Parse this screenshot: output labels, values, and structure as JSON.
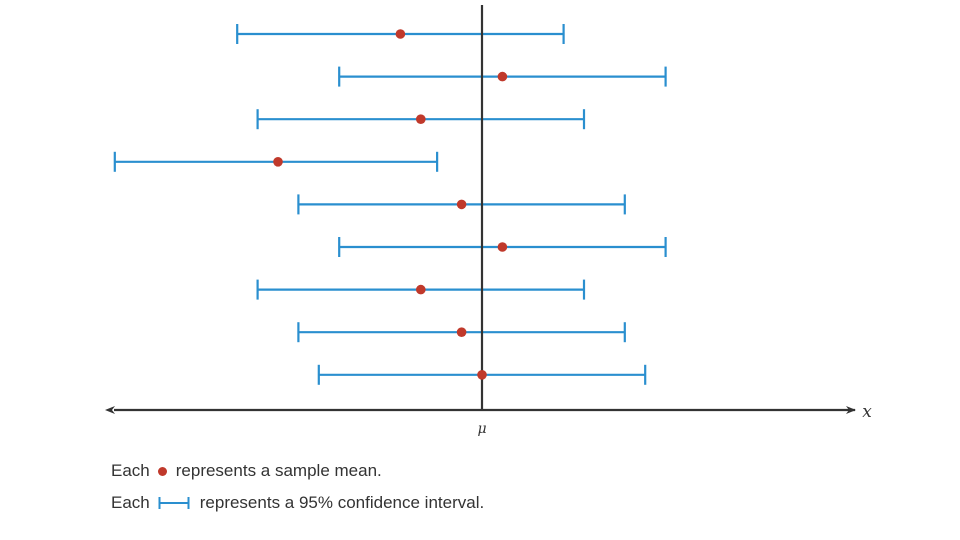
{
  "diagram": {
    "axis": {
      "mean_symbol": "μ",
      "variable_label": "x"
    },
    "intervals": [
      {
        "lower": -6.0,
        "mean": -2.0,
        "upper": 2.0
      },
      {
        "lower": -3.5,
        "mean": 0.5,
        "upper": 4.5
      },
      {
        "lower": -5.5,
        "mean": -1.5,
        "upper": 2.5
      },
      {
        "lower": -9.0,
        "mean": -5.0,
        "upper": -1.1
      },
      {
        "lower": -4.5,
        "mean": -0.5,
        "upper": 3.5
      },
      {
        "lower": -3.5,
        "mean": 0.5,
        "upper": 4.5
      },
      {
        "lower": -5.5,
        "mean": -1.5,
        "upper": 2.5
      },
      {
        "lower": -4.5,
        "mean": -0.5,
        "upper": 3.5
      },
      {
        "lower": -4.0,
        "mean": 0.0,
        "upper": 4.0
      }
    ],
    "colors": {
      "interval": "#2a8fcf",
      "point": "#c0392b",
      "axis": "#333333",
      "text": "#333333"
    }
  },
  "legend": {
    "each_word": "Each",
    "mean_text": "represents a sample mean.",
    "interval_text": "represents a 95% confidence interval."
  }
}
